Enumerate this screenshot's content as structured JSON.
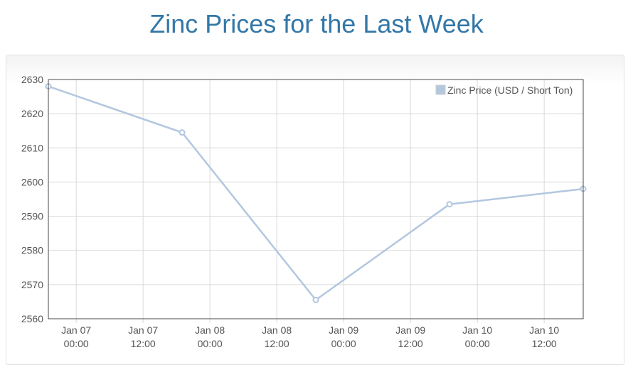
{
  "page": {
    "title": "Zinc Prices for the Last Week"
  },
  "colors": {
    "title": "#3377a8",
    "series_line": "#b3c7df",
    "grid": "#d9d9d9",
    "plot_border": "#4a4a4a",
    "tick_text": "#545454"
  },
  "chart_data": {
    "type": "line",
    "title": "Zinc Prices for the Last Week",
    "xlabel": "",
    "ylabel": "",
    "grid": true,
    "legend_position": "top-right",
    "x_range": [
      "2024-01-06T19:00",
      "2024-01-10T19:00"
    ],
    "ylim": [
      2560,
      2630
    ],
    "y_ticks": [
      2560,
      2570,
      2580,
      2590,
      2600,
      2610,
      2620,
      2630
    ],
    "x_ticks": [
      {
        "at": "2024-01-07T00:00",
        "line1": "Jan 07",
        "line2": "00:00"
      },
      {
        "at": "2024-01-07T12:00",
        "line1": "Jan 07",
        "line2": "12:00"
      },
      {
        "at": "2024-01-08T00:00",
        "line1": "Jan 08",
        "line2": "00:00"
      },
      {
        "at": "2024-01-08T12:00",
        "line1": "Jan 08",
        "line2": "12:00"
      },
      {
        "at": "2024-01-09T00:00",
        "line1": "Jan 09",
        "line2": "00:00"
      },
      {
        "at": "2024-01-09T12:00",
        "line1": "Jan 09",
        "line2": "12:00"
      },
      {
        "at": "2024-01-10T00:00",
        "line1": "Jan 10",
        "line2": "00:00"
      },
      {
        "at": "2024-01-10T12:00",
        "line1": "Jan 10",
        "line2": "12:00"
      }
    ],
    "series": [
      {
        "name": "Zinc Price (USD / Short Ton)",
        "points": [
          {
            "x": "2024-01-06T19:00",
            "y": 2628
          },
          {
            "x": "2024-01-07T19:00",
            "y": 2614.5
          },
          {
            "x": "2024-01-08T19:00",
            "y": 2565.5
          },
          {
            "x": "2024-01-09T19:00",
            "y": 2593.5
          },
          {
            "x": "2024-01-10T19:00",
            "y": 2598
          }
        ]
      }
    ]
  }
}
